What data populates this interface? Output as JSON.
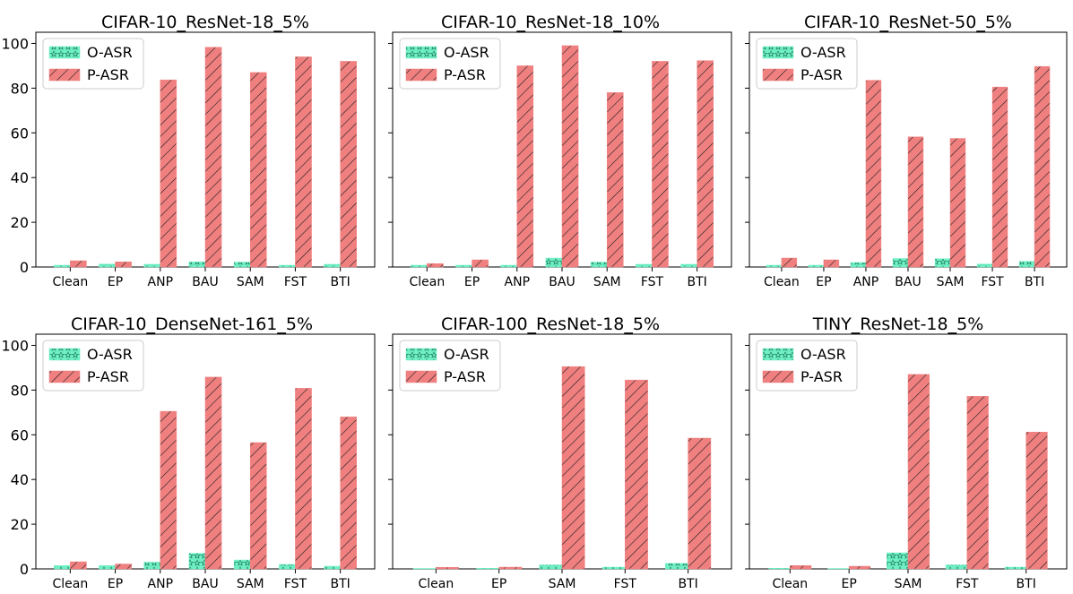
{
  "colors": {
    "oasr": "#6ff0c4",
    "oasr_hatch": "#1d7a5c",
    "pasr": "#f08080",
    "pasr_hatch": "#1a1a1a"
  },
  "legend": {
    "placement": "top-left",
    "entries": [
      "O-ASR",
      "P-ASR"
    ]
  },
  "chart_data": [
    {
      "type": "bar",
      "title": "CIFAR-10_ResNet-18_5%",
      "categories": [
        "Clean",
        "EP",
        "ANP",
        "BAU",
        "SAM",
        "FST",
        "BTI"
      ],
      "series": [
        {
          "name": "O-ASR",
          "values": [
            0.8,
            1.3,
            1.2,
            2.3,
            2.2,
            0.8,
            1.2
          ]
        },
        {
          "name": "P-ASR",
          "values": [
            2.8,
            2.3,
            83.7,
            98.3,
            87.0,
            94.0,
            92.0
          ]
        }
      ],
      "ylim": [
        0,
        105
      ],
      "yticks": [
        0,
        20,
        40,
        60,
        80,
        100
      ],
      "grid": false
    },
    {
      "type": "bar",
      "title": "CIFAR-10_ResNet-18_10%",
      "categories": [
        "Clean",
        "EP",
        "ANP",
        "BAU",
        "SAM",
        "FST",
        "BTI"
      ],
      "series": [
        {
          "name": "O-ASR",
          "values": [
            0.8,
            0.8,
            0.8,
            4.0,
            2.2,
            1.2,
            1.2
          ]
        },
        {
          "name": "P-ASR",
          "values": [
            1.5,
            3.2,
            90.0,
            99.0,
            78.0,
            92.0,
            92.3
          ]
        }
      ],
      "ylim": [
        0,
        105
      ],
      "yticks": [
        0,
        20,
        40,
        60,
        80,
        100
      ],
      "grid": false
    },
    {
      "type": "bar",
      "title": "CIFAR-10_ResNet-50_5%",
      "categories": [
        "Clean",
        "EP",
        "ANP",
        "BAU",
        "SAM",
        "FST",
        "BTI"
      ],
      "series": [
        {
          "name": "O-ASR",
          "values": [
            0.8,
            0.8,
            2.0,
            3.8,
            3.7,
            1.3,
            2.5
          ]
        },
        {
          "name": "P-ASR",
          "values": [
            4.0,
            3.2,
            83.5,
            58.2,
            57.5,
            80.5,
            89.7
          ]
        }
      ],
      "ylim": [
        0,
        105
      ],
      "yticks": [
        0,
        20,
        40,
        60,
        80,
        100
      ],
      "grid": false
    },
    {
      "type": "bar",
      "title": "CIFAR-10_DenseNet-161_5%",
      "categories": [
        "Clean",
        "EP",
        "ANP",
        "BAU",
        "SAM",
        "FST",
        "BTI"
      ],
      "series": [
        {
          "name": "O-ASR",
          "values": [
            1.5,
            1.5,
            3.0,
            7.0,
            4.0,
            2.0,
            1.2
          ]
        },
        {
          "name": "P-ASR",
          "values": [
            3.2,
            2.2,
            70.5,
            85.8,
            56.5,
            80.8,
            68.0
          ]
        }
      ],
      "ylim": [
        0,
        105
      ],
      "yticks": [
        0,
        20,
        40,
        60,
        80,
        100
      ],
      "grid": false
    },
    {
      "type": "bar",
      "title": "CIFAR-100_ResNet-18_5%",
      "categories": [
        "Clean",
        "EP",
        "SAM",
        "FST",
        "BTI"
      ],
      "series": [
        {
          "name": "O-ASR",
          "values": [
            0.2,
            0.3,
            1.8,
            0.8,
            2.5
          ]
        },
        {
          "name": "P-ASR",
          "values": [
            0.7,
            0.8,
            90.5,
            84.5,
            58.5
          ]
        }
      ],
      "ylim": [
        0,
        105
      ],
      "yticks": [
        0,
        20,
        40,
        60,
        80,
        100
      ],
      "grid": false
    },
    {
      "type": "bar",
      "title": "TINY_ResNet-18_5%",
      "categories": [
        "Clean",
        "EP",
        "SAM",
        "FST",
        "BTI"
      ],
      "series": [
        {
          "name": "O-ASR",
          "values": [
            0.3,
            0.2,
            7.2,
            1.8,
            0.8
          ]
        },
        {
          "name": "P-ASR",
          "values": [
            1.5,
            1.2,
            87.0,
            77.2,
            61.2
          ]
        }
      ],
      "ylim": [
        0,
        105
      ],
      "yticks": [
        0,
        20,
        40,
        60,
        80,
        100
      ],
      "grid": false
    }
  ]
}
